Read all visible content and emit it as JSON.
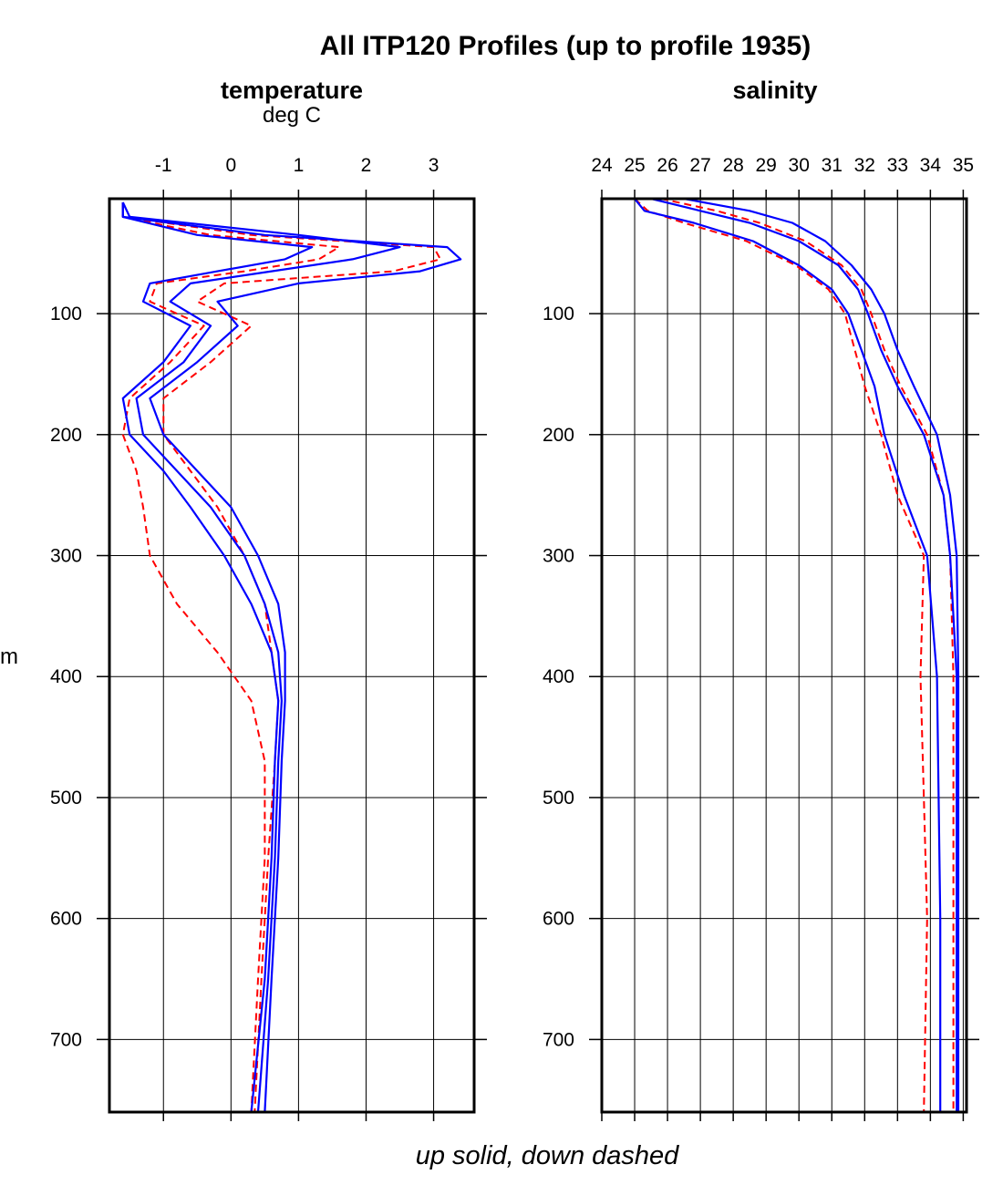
{
  "page": {
    "title": "All ITP120 Profiles (up to profile 1935)",
    "footer": "up solid, down dashed",
    "ylabel_fragment": "m"
  },
  "colors": {
    "up": "#0000ff",
    "down": "#ff0000",
    "frame": "#000000"
  },
  "chart_data": [
    {
      "type": "line",
      "title": "temperature",
      "units": "deg C",
      "xlim": [
        -1.8,
        3.6
      ],
      "ylim": [
        760,
        5
      ],
      "y_reversed": true,
      "x_ticks": [
        -1,
        0,
        1,
        2,
        3
      ],
      "x_tick_labels": [
        "-1",
        "0",
        "1",
        "2",
        "3"
      ],
      "y_ticks": [
        100,
        200,
        300,
        400,
        500,
        600,
        700
      ],
      "y_tick_labels": [
        "100",
        "200",
        "300",
        "400",
        "500",
        "600",
        "700"
      ],
      "grid": true,
      "depth": [
        8,
        20,
        35,
        45,
        55,
        65,
        75,
        90,
        110,
        140,
        170,
        200,
        230,
        260,
        300,
        340,
        380,
        420,
        470,
        550,
        650,
        760
      ],
      "series": [
        {
          "style": "up",
          "values": [
            -1.6,
            -1.6,
            0.5,
            3.2,
            3.4,
            2.8,
            1.0,
            -0.2,
            0.1,
            -0.5,
            -1.2,
            -1.0,
            -0.5,
            0.0,
            0.4,
            0.7,
            0.8,
            0.8,
            0.75,
            0.7,
            0.6,
            0.5
          ]
        },
        {
          "style": "up",
          "values": [
            -1.6,
            -1.5,
            1.0,
            2.5,
            1.8,
            0.6,
            -0.6,
            -0.9,
            -0.3,
            -0.7,
            -1.4,
            -1.3,
            -0.8,
            -0.3,
            0.2,
            0.5,
            0.7,
            0.75,
            0.7,
            0.65,
            0.55,
            0.4
          ]
        },
        {
          "style": "up",
          "values": [
            -1.6,
            -1.6,
            -0.5,
            1.2,
            0.8,
            -0.2,
            -1.2,
            -1.3,
            -0.6,
            -1.0,
            -1.6,
            -1.5,
            -1.0,
            -0.6,
            -0.1,
            0.3,
            0.6,
            0.7,
            0.65,
            0.6,
            0.5,
            0.3
          ]
        },
        {
          "style": "down",
          "values": [
            -1.6,
            -1.6,
            0.3,
            3.0,
            3.1,
            2.4,
            -0.1,
            -0.5,
            0.3,
            -0.3,
            -1.0,
            -1.0,
            -0.6,
            -0.2,
            0.2,
            0.5,
            0.6,
            0.7,
            0.65,
            0.55,
            0.45,
            0.35
          ]
        },
        {
          "style": "down",
          "values": [
            -1.6,
            -1.6,
            -0.3,
            1.6,
            1.3,
            0.2,
            -1.1,
            -1.2,
            -0.4,
            -0.9,
            -1.5,
            -1.6,
            -1.4,
            -1.3,
            -1.2,
            -0.8,
            -0.2,
            0.3,
            0.5,
            0.5,
            0.4,
            0.3
          ]
        }
      ]
    },
    {
      "type": "line",
      "title": "salinity",
      "units": "",
      "xlim": [
        24,
        35.1
      ],
      "ylim": [
        760,
        5
      ],
      "y_reversed": true,
      "x_ticks": [
        24,
        25,
        26,
        27,
        28,
        29,
        30,
        31,
        32,
        33,
        34,
        35
      ],
      "x_tick_labels": [
        "24",
        "25",
        "26",
        "27",
        "28",
        "29",
        "30",
        "31",
        "32",
        "33",
        "34",
        "35"
      ],
      "y_ticks": [
        100,
        200,
        300,
        400,
        500,
        600,
        700
      ],
      "y_tick_labels": [
        "100",
        "200",
        "300",
        "400",
        "500",
        "600",
        "700"
      ],
      "grid": true,
      "depth": [
        5,
        15,
        25,
        40,
        60,
        80,
        100,
        130,
        160,
        200,
        250,
        300,
        400,
        500,
        600,
        760
      ],
      "series": [
        {
          "style": "up",
          "values": [
            25.0,
            25.3,
            26.8,
            28.6,
            30.0,
            31.0,
            31.5,
            31.9,
            32.3,
            32.6,
            33.2,
            33.9,
            34.2,
            34.25,
            34.3,
            34.3
          ]
        },
        {
          "style": "up",
          "values": [
            25.5,
            27.0,
            28.5,
            30.0,
            31.2,
            31.8,
            32.1,
            32.5,
            33.0,
            33.8,
            34.4,
            34.6,
            34.8,
            34.8,
            34.8,
            34.8
          ]
        },
        {
          "style": "up",
          "values": [
            26.5,
            28.5,
            29.8,
            30.8,
            31.6,
            32.2,
            32.6,
            33.0,
            33.5,
            34.2,
            34.6,
            34.8,
            34.85,
            34.85,
            34.85,
            34.85
          ]
        },
        {
          "style": "down",
          "values": [
            25.0,
            25.4,
            26.5,
            28.4,
            29.9,
            30.9,
            31.4,
            31.7,
            32.0,
            32.5,
            33.0,
            33.8,
            33.7,
            33.8,
            33.9,
            33.8
          ]
        },
        {
          "style": "down",
          "values": [
            25.8,
            27.5,
            28.8,
            30.2,
            31.3,
            31.9,
            32.2,
            32.6,
            33.1,
            33.9,
            34.4,
            34.6,
            34.7,
            34.7,
            34.7,
            34.7
          ]
        }
      ]
    }
  ]
}
